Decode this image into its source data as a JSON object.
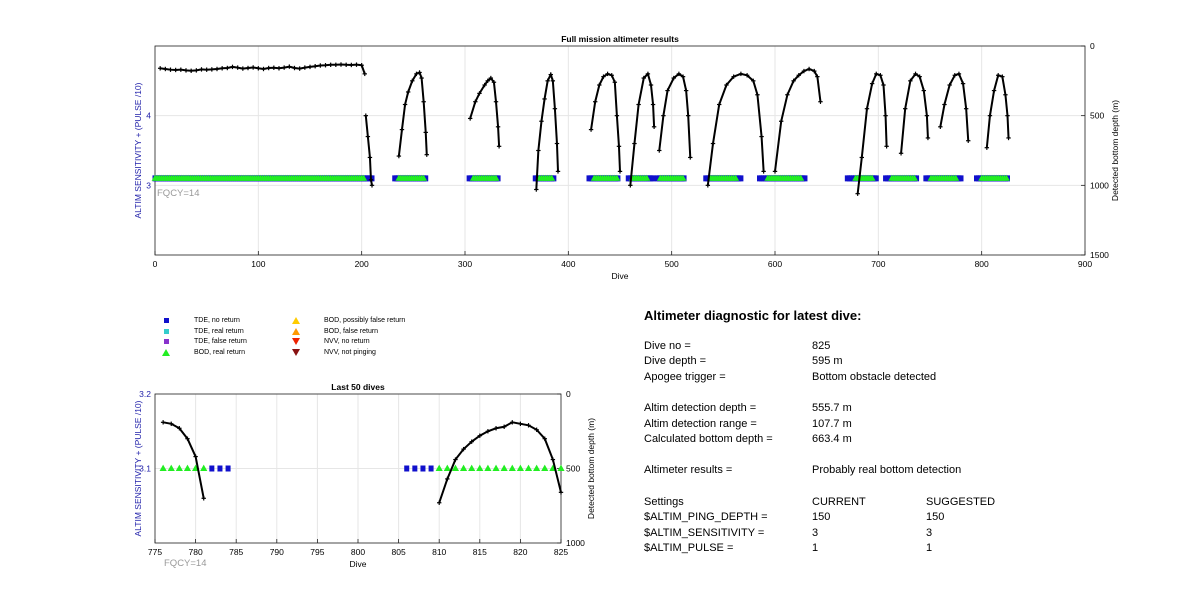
{
  "colors": {
    "tde_no_return": "#1010cc",
    "tde_real_return": "#33cccc",
    "tde_false_return": "#8833cc",
    "bod_real_return": "#22ee22",
    "bod_possibly_false": "#ffcc00",
    "bod_false_return": "#ff9900",
    "nvv_no_return": "#ee2200",
    "nvv_not_pinging": "#881111",
    "left_axis": "#2222aa",
    "fqcy_text": "#999999",
    "depth_line": "#000000"
  },
  "legend": [
    {
      "label": "TDE, no return",
      "marker": "square",
      "color_key": "tde_no_return"
    },
    {
      "label": "TDE, real return",
      "marker": "square",
      "color_key": "tde_real_return"
    },
    {
      "label": "TDE, false return",
      "marker": "square",
      "color_key": "tde_false_return"
    },
    {
      "label": "BOD, real return",
      "marker": "triangle-up",
      "color_key": "bod_real_return"
    },
    {
      "label": "BOD, possibly false return",
      "marker": "triangle-up",
      "color_key": "bod_possibly_false"
    },
    {
      "label": "BOD, false return",
      "marker": "triangle-up",
      "color_key": "bod_false_return"
    },
    {
      "label": "NVV, no return",
      "marker": "triangle-down",
      "color_key": "nvv_no_return"
    },
    {
      "label": "NVV, not pinging",
      "marker": "triangle-down",
      "color_key": "nvv_not_pinging"
    }
  ],
  "diagnostic": {
    "title": "Altimeter diagnostic for latest dive:",
    "dive_no": {
      "label": "Dive no =",
      "value": "825"
    },
    "dive_depth": {
      "label": "Dive depth =",
      "value": "595 m"
    },
    "apogee_trigger": {
      "label": "Apogee trigger =",
      "value": "Bottom obstacle detected"
    },
    "altim_detection_depth": {
      "label": "Altim detection depth =",
      "value": "555.7 m"
    },
    "altim_detection_range": {
      "label": "Altim detection range =",
      "value": "107.7 m"
    },
    "calculated_bottom_depth": {
      "label": "Calculated bottom depth =",
      "value": "663.4 m"
    },
    "altimeter_results": {
      "label": "Altimeter results =",
      "value": "Probably real bottom detection"
    },
    "settings": {
      "header": {
        "label": "Settings",
        "current": "CURRENT",
        "suggested": "SUGGESTED"
      },
      "rows": [
        {
          "label": "$ALTIM_PING_DEPTH =",
          "current": "150",
          "suggested": "150"
        },
        {
          "label": "$ALTIM_SENSITIVITY =",
          "current": "3",
          "suggested": "3"
        },
        {
          "label": "$ALTIM_PULSE =",
          "current": "1",
          "suggested": "1"
        }
      ]
    }
  },
  "chart_data": [
    {
      "type": "scatter",
      "title": "Full mission altimeter results",
      "xlabel": "Dive",
      "ylabel": "ALTIM SENSITIVITY + (PULSE /10)",
      "y2label": "Detected bottom depth (m)",
      "annotation": "FQCY=14",
      "xlim": [
        0,
        900
      ],
      "ylim": [
        2,
        5
      ],
      "y2lim": [
        1500,
        0
      ],
      "y2_reversed": true,
      "xticks": [
        "0",
        "100",
        "200",
        "300",
        "400",
        "500",
        "600",
        "700",
        "800",
        "900"
      ],
      "yticks": [
        "3",
        "4"
      ],
      "y2ticks": [
        "0",
        "500",
        "1000",
        "1500"
      ],
      "grid": true,
      "sensitivity_level": 3.1,
      "bod_ranges": [
        [
          0,
          202
        ],
        [
          236,
          260
        ],
        [
          308,
          330
        ],
        [
          372,
          385
        ],
        [
          425,
          447
        ],
        [
          462,
          477
        ],
        [
          489,
          511
        ],
        [
          538,
          563
        ],
        [
          593,
          625
        ],
        [
          678,
          695
        ],
        [
          713,
          735
        ],
        [
          751,
          776
        ],
        [
          800,
          824
        ]
      ],
      "tde_ranges": [
        [
          0,
          210
        ],
        [
          232,
          262
        ],
        [
          304,
          333
        ],
        [
          368,
          386
        ],
        [
          420,
          449
        ],
        [
          458,
          482
        ],
        [
          486,
          513
        ],
        [
          533,
          567
        ],
        [
          585,
          630
        ],
        [
          670,
          698
        ],
        [
          707,
          738
        ],
        [
          746,
          780
        ],
        [
          795,
          826
        ]
      ],
      "depth_series": [
        {
          "name": "",
          "points": [
            [
              5,
              160
            ],
            [
              10,
              165
            ],
            [
              15,
              170
            ],
            [
              20,
              172
            ],
            [
              25,
              170
            ],
            [
              30,
              175
            ],
            [
              35,
              178
            ],
            [
              40,
              175
            ],
            [
              45,
              168
            ],
            [
              50,
              170
            ],
            [
              55,
              168
            ],
            [
              60,
              165
            ],
            [
              65,
              160
            ],
            [
              70,
              158
            ],
            [
              75,
              150
            ],
            [
              80,
              155
            ],
            [
              85,
              162
            ],
            [
              90,
              158
            ],
            [
              95,
              154
            ],
            [
              100,
              160
            ],
            [
              105,
              165
            ],
            [
              110,
              158
            ],
            [
              115,
              156
            ],
            [
              120,
              160
            ],
            [
              125,
              155
            ],
            [
              130,
              148
            ],
            [
              135,
              158
            ],
            [
              140,
              162
            ],
            [
              145,
              155
            ],
            [
              150,
              150
            ],
            [
              155,
              145
            ],
            [
              160,
              140
            ],
            [
              165,
              138
            ],
            [
              170,
              135
            ],
            [
              175,
              135
            ],
            [
              180,
              133
            ],
            [
              185,
              135
            ],
            [
              190,
              136
            ],
            [
              195,
              134
            ],
            [
              200,
              138
            ],
            [
              203,
              200
            ]
          ]
        },
        {
          "name": "",
          "points": [
            [
              204,
              500
            ],
            [
              206,
              650
            ],
            [
              208,
              800
            ],
            [
              209,
              960
            ],
            [
              210,
              1000
            ]
          ]
        },
        {
          "name": "",
          "points": [
            [
              236,
              790
            ],
            [
              239,
              600
            ],
            [
              242,
              420
            ],
            [
              245,
              330
            ],
            [
              249,
              250
            ],
            [
              253,
              200
            ],
            [
              256,
              190
            ],
            [
              258,
              230
            ],
            [
              260,
              400
            ],
            [
              262,
              620
            ],
            [
              263,
              780
            ]
          ]
        },
        {
          "name": "",
          "points": [
            [
              305,
              520
            ],
            [
              310,
              400
            ],
            [
              314,
              340
            ],
            [
              319,
              280
            ],
            [
              322,
              250
            ],
            [
              325,
              230
            ],
            [
              328,
              260
            ],
            [
              330,
              400
            ],
            [
              332,
              580
            ],
            [
              333,
              720
            ]
          ]
        },
        {
          "name": "",
          "points": [
            [
              369,
              1030
            ],
            [
              371,
              750
            ],
            [
              374,
              540
            ],
            [
              377,
              380
            ],
            [
              380,
              250
            ],
            [
              383,
              205
            ],
            [
              385,
              250
            ],
            [
              387,
              450
            ],
            [
              389,
              700
            ],
            [
              390,
              900
            ]
          ]
        },
        {
          "name": "",
          "points": [
            [
              422,
              600
            ],
            [
              426,
              400
            ],
            [
              430,
              280
            ],
            [
              434,
              220
            ],
            [
              438,
              200
            ],
            [
              442,
              210
            ],
            [
              445,
              260
            ],
            [
              447,
              500
            ],
            [
              449,
              720
            ],
            [
              450,
              900
            ]
          ]
        },
        {
          "name": "",
          "points": [
            [
              460,
              1000
            ],
            [
              464,
              700
            ],
            [
              468,
              420
            ],
            [
              473,
              230
            ],
            [
              477,
              200
            ],
            [
              480,
              280
            ],
            [
              482,
              420
            ],
            [
              483,
              580
            ]
          ]
        },
        {
          "name": "",
          "points": [
            [
              488,
              750
            ],
            [
              492,
              500
            ],
            [
              496,
              320
            ],
            [
              502,
              230
            ],
            [
              507,
              200
            ],
            [
              511,
              220
            ],
            [
              514,
              320
            ],
            [
              516,
              500
            ],
            [
              518,
              800
            ]
          ]
        },
        {
          "name": "",
          "points": [
            [
              535,
              1000
            ],
            [
              540,
              700
            ],
            [
              546,
              420
            ],
            [
              553,
              280
            ],
            [
              560,
              220
            ],
            [
              567,
              200
            ],
            [
              573,
              210
            ],
            [
              579,
              250
            ],
            [
              583,
              350
            ],
            [
              587,
              650
            ],
            [
              589,
              900
            ]
          ]
        },
        {
          "name": "",
          "points": [
            [
              600,
              900
            ],
            [
              606,
              540
            ],
            [
              612,
              350
            ],
            [
              618,
              250
            ],
            [
              623,
              210
            ],
            [
              628,
              180
            ],
            [
              633,
              165
            ],
            [
              638,
              180
            ],
            [
              641,
              220
            ],
            [
              644,
              400
            ]
          ]
        },
        {
          "name": "",
          "points": [
            [
              680,
              1060
            ],
            [
              684,
              800
            ],
            [
              689,
              450
            ],
            [
              694,
              270
            ],
            [
              698,
              200
            ],
            [
              702,
              210
            ],
            [
              705,
              280
            ],
            [
              707,
              500
            ],
            [
              708,
              720
            ]
          ]
        },
        {
          "name": "",
          "points": [
            [
              722,
              770
            ],
            [
              726,
              450
            ],
            [
              731,
              250
            ],
            [
              736,
              200
            ],
            [
              740,
              220
            ],
            [
              744,
              320
            ],
            [
              747,
              500
            ],
            [
              748,
              660
            ]
          ]
        },
        {
          "name": "",
          "points": [
            [
              760,
              580
            ],
            [
              764,
              420
            ],
            [
              769,
              280
            ],
            [
              774,
              210
            ],
            [
              778,
              200
            ],
            [
              782,
              270
            ],
            [
              785,
              450
            ],
            [
              787,
              680
            ]
          ]
        },
        {
          "name": "",
          "points": [
            [
              805,
              730
            ],
            [
              808,
              500
            ],
            [
              812,
              320
            ],
            [
              816,
              210
            ],
            [
              820,
              220
            ],
            [
              823,
              350
            ],
            [
              825,
              500
            ],
            [
              826,
              660
            ]
          ]
        }
      ]
    },
    {
      "type": "scatter",
      "title": "Last 50 dives",
      "xlabel": "Dive",
      "ylabel": "ALTIM SENSITIVITY + (PULSE /10)",
      "y2label": "Detected bottom depth (m)",
      "annotation": "FQCY=14",
      "xlim": [
        775,
        825
      ],
      "ylim": [
        3,
        3.2
      ],
      "y2lim": [
        1000,
        0
      ],
      "y2_reversed": true,
      "xticks": [
        "775",
        "780",
        "785",
        "790",
        "795",
        "800",
        "805",
        "810",
        "815",
        "820",
        "825"
      ],
      "yticks": [
        "3.1",
        "3.2"
      ],
      "y2ticks": [
        "0",
        "500",
        "1000"
      ],
      "grid": true,
      "bod_dives": [
        776,
        777,
        778,
        779,
        780,
        781,
        810,
        811,
        812,
        813,
        814,
        815,
        816,
        817,
        818,
        819,
        820,
        821,
        822,
        823,
        824,
        825
      ],
      "tde_dives": [
        782,
        783,
        784,
        806,
        807,
        808,
        809
      ],
      "marker_level": 3.1,
      "depth_series": [
        {
          "name": "",
          "points": [
            [
              776,
              190
            ],
            [
              777,
              200
            ],
            [
              778,
              230
            ],
            [
              779,
              300
            ],
            [
              780,
              420
            ],
            [
              781,
              700
            ]
          ]
        },
        {
          "name": "",
          "points": [
            [
              810,
              730
            ],
            [
              811,
              570
            ],
            [
              812,
              440
            ],
            [
              813,
              370
            ],
            [
              814,
              320
            ],
            [
              815,
              280
            ],
            [
              816,
              250
            ],
            [
              817,
              230
            ],
            [
              818,
              220
            ],
            [
              819,
              190
            ],
            [
              820,
              200
            ],
            [
              821,
              210
            ],
            [
              822,
              240
            ],
            [
              823,
              300
            ],
            [
              824,
              440
            ],
            [
              825,
              660
            ]
          ]
        }
      ]
    }
  ]
}
